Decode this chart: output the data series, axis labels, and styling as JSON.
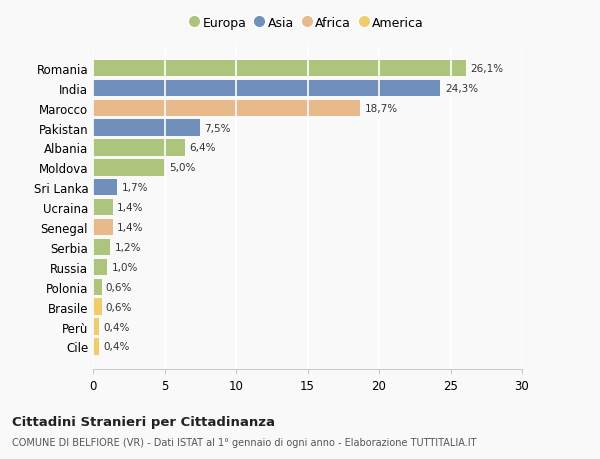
{
  "countries": [
    "Romania",
    "India",
    "Marocco",
    "Pakistan",
    "Albania",
    "Moldova",
    "Sri Lanka",
    "Ucraina",
    "Senegal",
    "Serbia",
    "Russia",
    "Polonia",
    "Brasile",
    "Perù",
    "Cile"
  ],
  "values": [
    26.1,
    24.3,
    18.7,
    7.5,
    6.4,
    5.0,
    1.7,
    1.4,
    1.4,
    1.2,
    1.0,
    0.6,
    0.6,
    0.4,
    0.4
  ],
  "labels": [
    "26,1%",
    "24,3%",
    "18,7%",
    "7,5%",
    "6,4%",
    "5,0%",
    "1,7%",
    "1,4%",
    "1,4%",
    "1,2%",
    "1,0%",
    "0,6%",
    "0,6%",
    "0,4%",
    "0,4%"
  ],
  "continents": [
    "Europa",
    "Asia",
    "Africa",
    "Asia",
    "Europa",
    "Europa",
    "Asia",
    "Europa",
    "Africa",
    "Europa",
    "Europa",
    "Europa",
    "America",
    "America",
    "America"
  ],
  "colors": {
    "Europa": "#adc47d",
    "Asia": "#7090bb",
    "Africa": "#e8b98a",
    "America": "#f0cc6a"
  },
  "legend_order": [
    "Europa",
    "Asia",
    "Africa",
    "America"
  ],
  "title": "Cittadini Stranieri per Cittadinanza",
  "subtitle": "COMUNE DI BELFIORE (VR) - Dati ISTAT al 1° gennaio di ogni anno - Elaborazione TUTTITALIA.IT",
  "xlim": [
    0,
    30
  ],
  "xticks": [
    0,
    5,
    10,
    15,
    20,
    25,
    30
  ],
  "background_color": "#f9f9f9",
  "grid_color": "#ffffff",
  "bar_height": 0.82
}
